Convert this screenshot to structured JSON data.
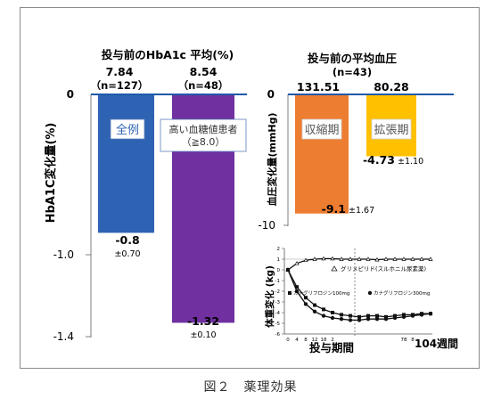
{
  "caption": "図２　薬理効果",
  "colors": {
    "all_patients": "#2e63b3",
    "high_glucose": "#7030a0",
    "systolic": "#ed7d31",
    "diastolic": "#ffc000",
    "baseline": "#1f5aa8",
    "axis": "#7f7f7f"
  },
  "chart_data": [
    {
      "type": "bar",
      "title": "投与前のHbA1c 平均(%)",
      "ylabel": "HbA1C変化量(%)",
      "ylim": [
        -1.4,
        0
      ],
      "yticks": [
        "0",
        "-1.0",
        "-1.4"
      ],
      "categories": [
        "全例",
        "高い血糖値患者\n（≧8.0）"
      ],
      "baseline_values": [
        "7.84",
        "8.54"
      ],
      "n_labels": [
        "（n=127）",
        "（n=48）"
      ],
      "values": [
        -0.8,
        -1.32
      ],
      "value_labels": [
        "-0.8",
        "-1.32"
      ],
      "errors": [
        "±0.70",
        "±0.10"
      ]
    },
    {
      "type": "bar",
      "title": "投与前の平均血圧",
      "subtitle": "(n=43)",
      "ylabel": "血圧変化量(mmHg)",
      "ylim": [
        -10,
        0
      ],
      "yticks": [
        "0",
        "-10"
      ],
      "categories": [
        "収縮期",
        "拡張期"
      ],
      "baseline_values": [
        "131.51",
        "80.28"
      ],
      "values": [
        -9.1,
        -4.73
      ],
      "value_labels": [
        "-9.1",
        "-4.73"
      ],
      "errors": [
        "±1.67",
        "±1.10"
      ]
    },
    {
      "type": "line",
      "ylabel": "体重変化 (kg)",
      "xlabel": "投与期間",
      "xlabel_end": "104週間",
      "yticks": [
        "2",
        "1",
        "0",
        "-1",
        "-2",
        "-3",
        "-4",
        "-5",
        "-6"
      ],
      "ylim": [
        -6,
        2
      ],
      "xticks": [
        "0",
        "4",
        "8",
        "12",
        "18",
        "2",
        "78",
        "8"
      ],
      "series": [
        {
          "name": "グリメピリド(スルホニル尿素薬)",
          "marker": "open-triangle",
          "x": [
            0,
            1,
            2,
            3,
            4,
            5,
            6,
            7,
            8,
            9,
            10,
            11,
            12,
            13,
            14,
            15,
            16
          ],
          "y": [
            0,
            0.6,
            0.9,
            1.0,
            1.05,
            1.05,
            1.0,
            1.0,
            1.0,
            1.0,
            0.95,
            1.0,
            1.0,
            1.0,
            1.0,
            1.0,
            1.0
          ]
        },
        {
          "name": "カナグリフロジン100mg",
          "marker": "filled-square",
          "x": [
            0,
            1,
            2,
            3,
            4,
            5,
            6,
            7,
            8,
            9,
            10,
            11,
            12,
            13,
            14,
            15,
            16
          ],
          "y": [
            0,
            -1.6,
            -2.6,
            -3.3,
            -3.7,
            -4.0,
            -4.2,
            -4.3,
            -4.4,
            -4.3,
            -4.3,
            -4.4,
            -4.3,
            -4.2,
            -4.2,
            -4.1,
            -4.1
          ]
        },
        {
          "name": "カナグリフロジン300mg",
          "marker": "filled-circle",
          "x": [
            0,
            1,
            2,
            3,
            4,
            5,
            6,
            7,
            8,
            9,
            10,
            11,
            12,
            13,
            14,
            15,
            16
          ],
          "y": [
            0,
            -2.0,
            -3.2,
            -3.9,
            -4.3,
            -4.5,
            -4.6,
            -4.7,
            -4.7,
            -4.6,
            -4.6,
            -4.6,
            -4.5,
            -4.4,
            -4.3,
            -4.2,
            -4.1
          ]
        }
      ]
    }
  ]
}
